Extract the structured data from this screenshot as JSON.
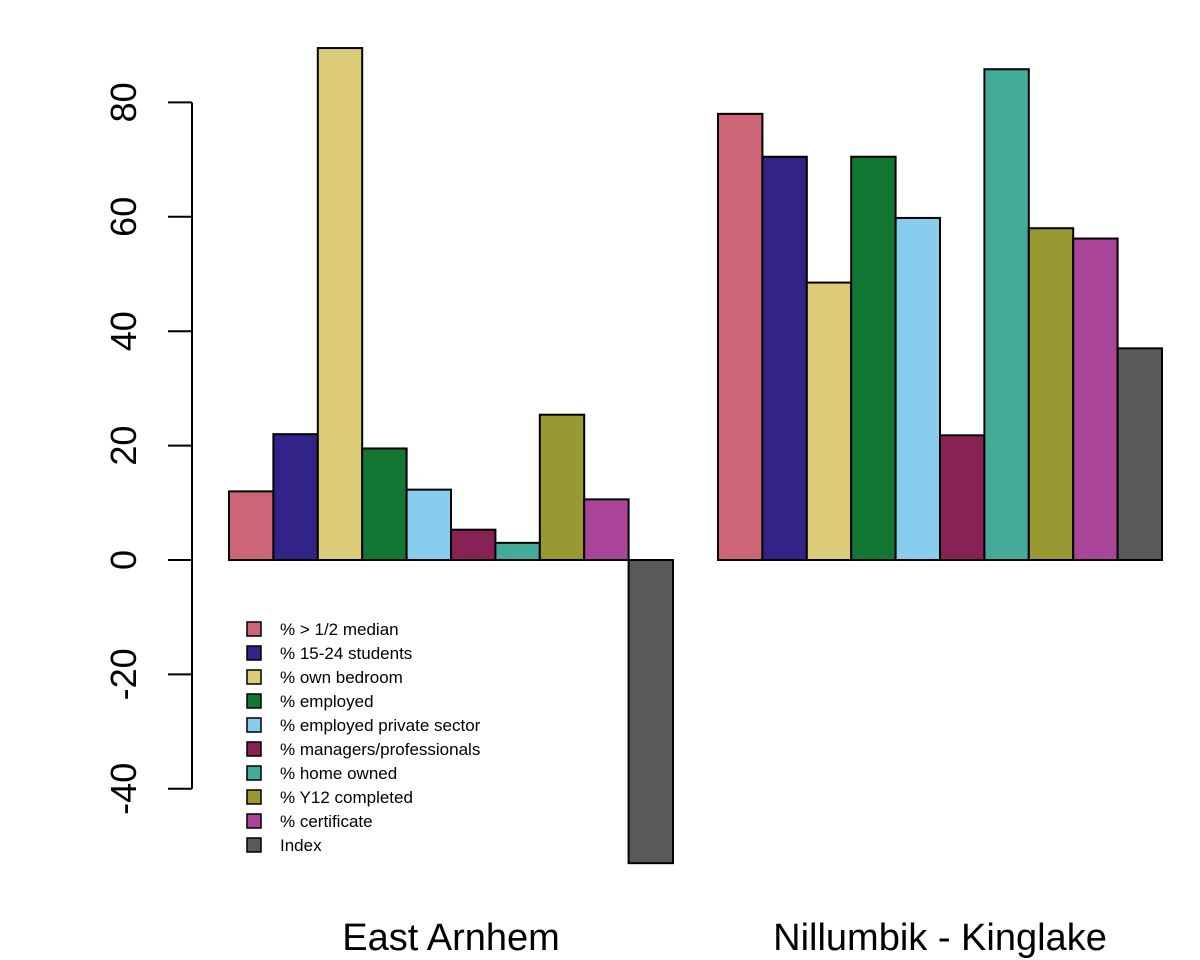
{
  "chart_data": {
    "type": "bar",
    "layout": "grouped",
    "categories": [
      "East Arnhem",
      "Nillumbik - Kinglake"
    ],
    "series": [
      {
        "name": "% > 1/2 median",
        "color": "#CC6677",
        "values": [
          12,
          78
        ]
      },
      {
        "name": "% 15-24 students",
        "color": "#332288",
        "values": [
          22,
          70.5
        ]
      },
      {
        "name": "% own bedroom",
        "color": "#DDCC77",
        "values": [
          89.5,
          48.5
        ]
      },
      {
        "name": "% employed",
        "color": "#117733",
        "values": [
          19.5,
          70.5
        ]
      },
      {
        "name": "% employed private sector",
        "color": "#88CCEE",
        "values": [
          12.3,
          59.8
        ]
      },
      {
        "name": "% managers/professionals",
        "color": "#882255",
        "values": [
          5.3,
          21.8
        ]
      },
      {
        "name": "% home owned",
        "color": "#44AA99",
        "values": [
          3,
          85.8
        ]
      },
      {
        "name": "% Y12 completed",
        "color": "#999933",
        "values": [
          25.4,
          58
        ]
      },
      {
        "name": "% certificate",
        "color": "#AA4499",
        "values": [
          10.6,
          56.2
        ]
      },
      {
        "name": "Index",
        "color": "#595959",
        "values": [
          -53,
          37
        ]
      }
    ],
    "yticks": [
      -40,
      -20,
      0,
      20,
      40,
      60,
      80
    ],
    "ylim": [
      -53,
      90
    ],
    "title": "",
    "xlabel": "",
    "ylabel": "",
    "grid": false,
    "legend_position": "bottom-left"
  }
}
